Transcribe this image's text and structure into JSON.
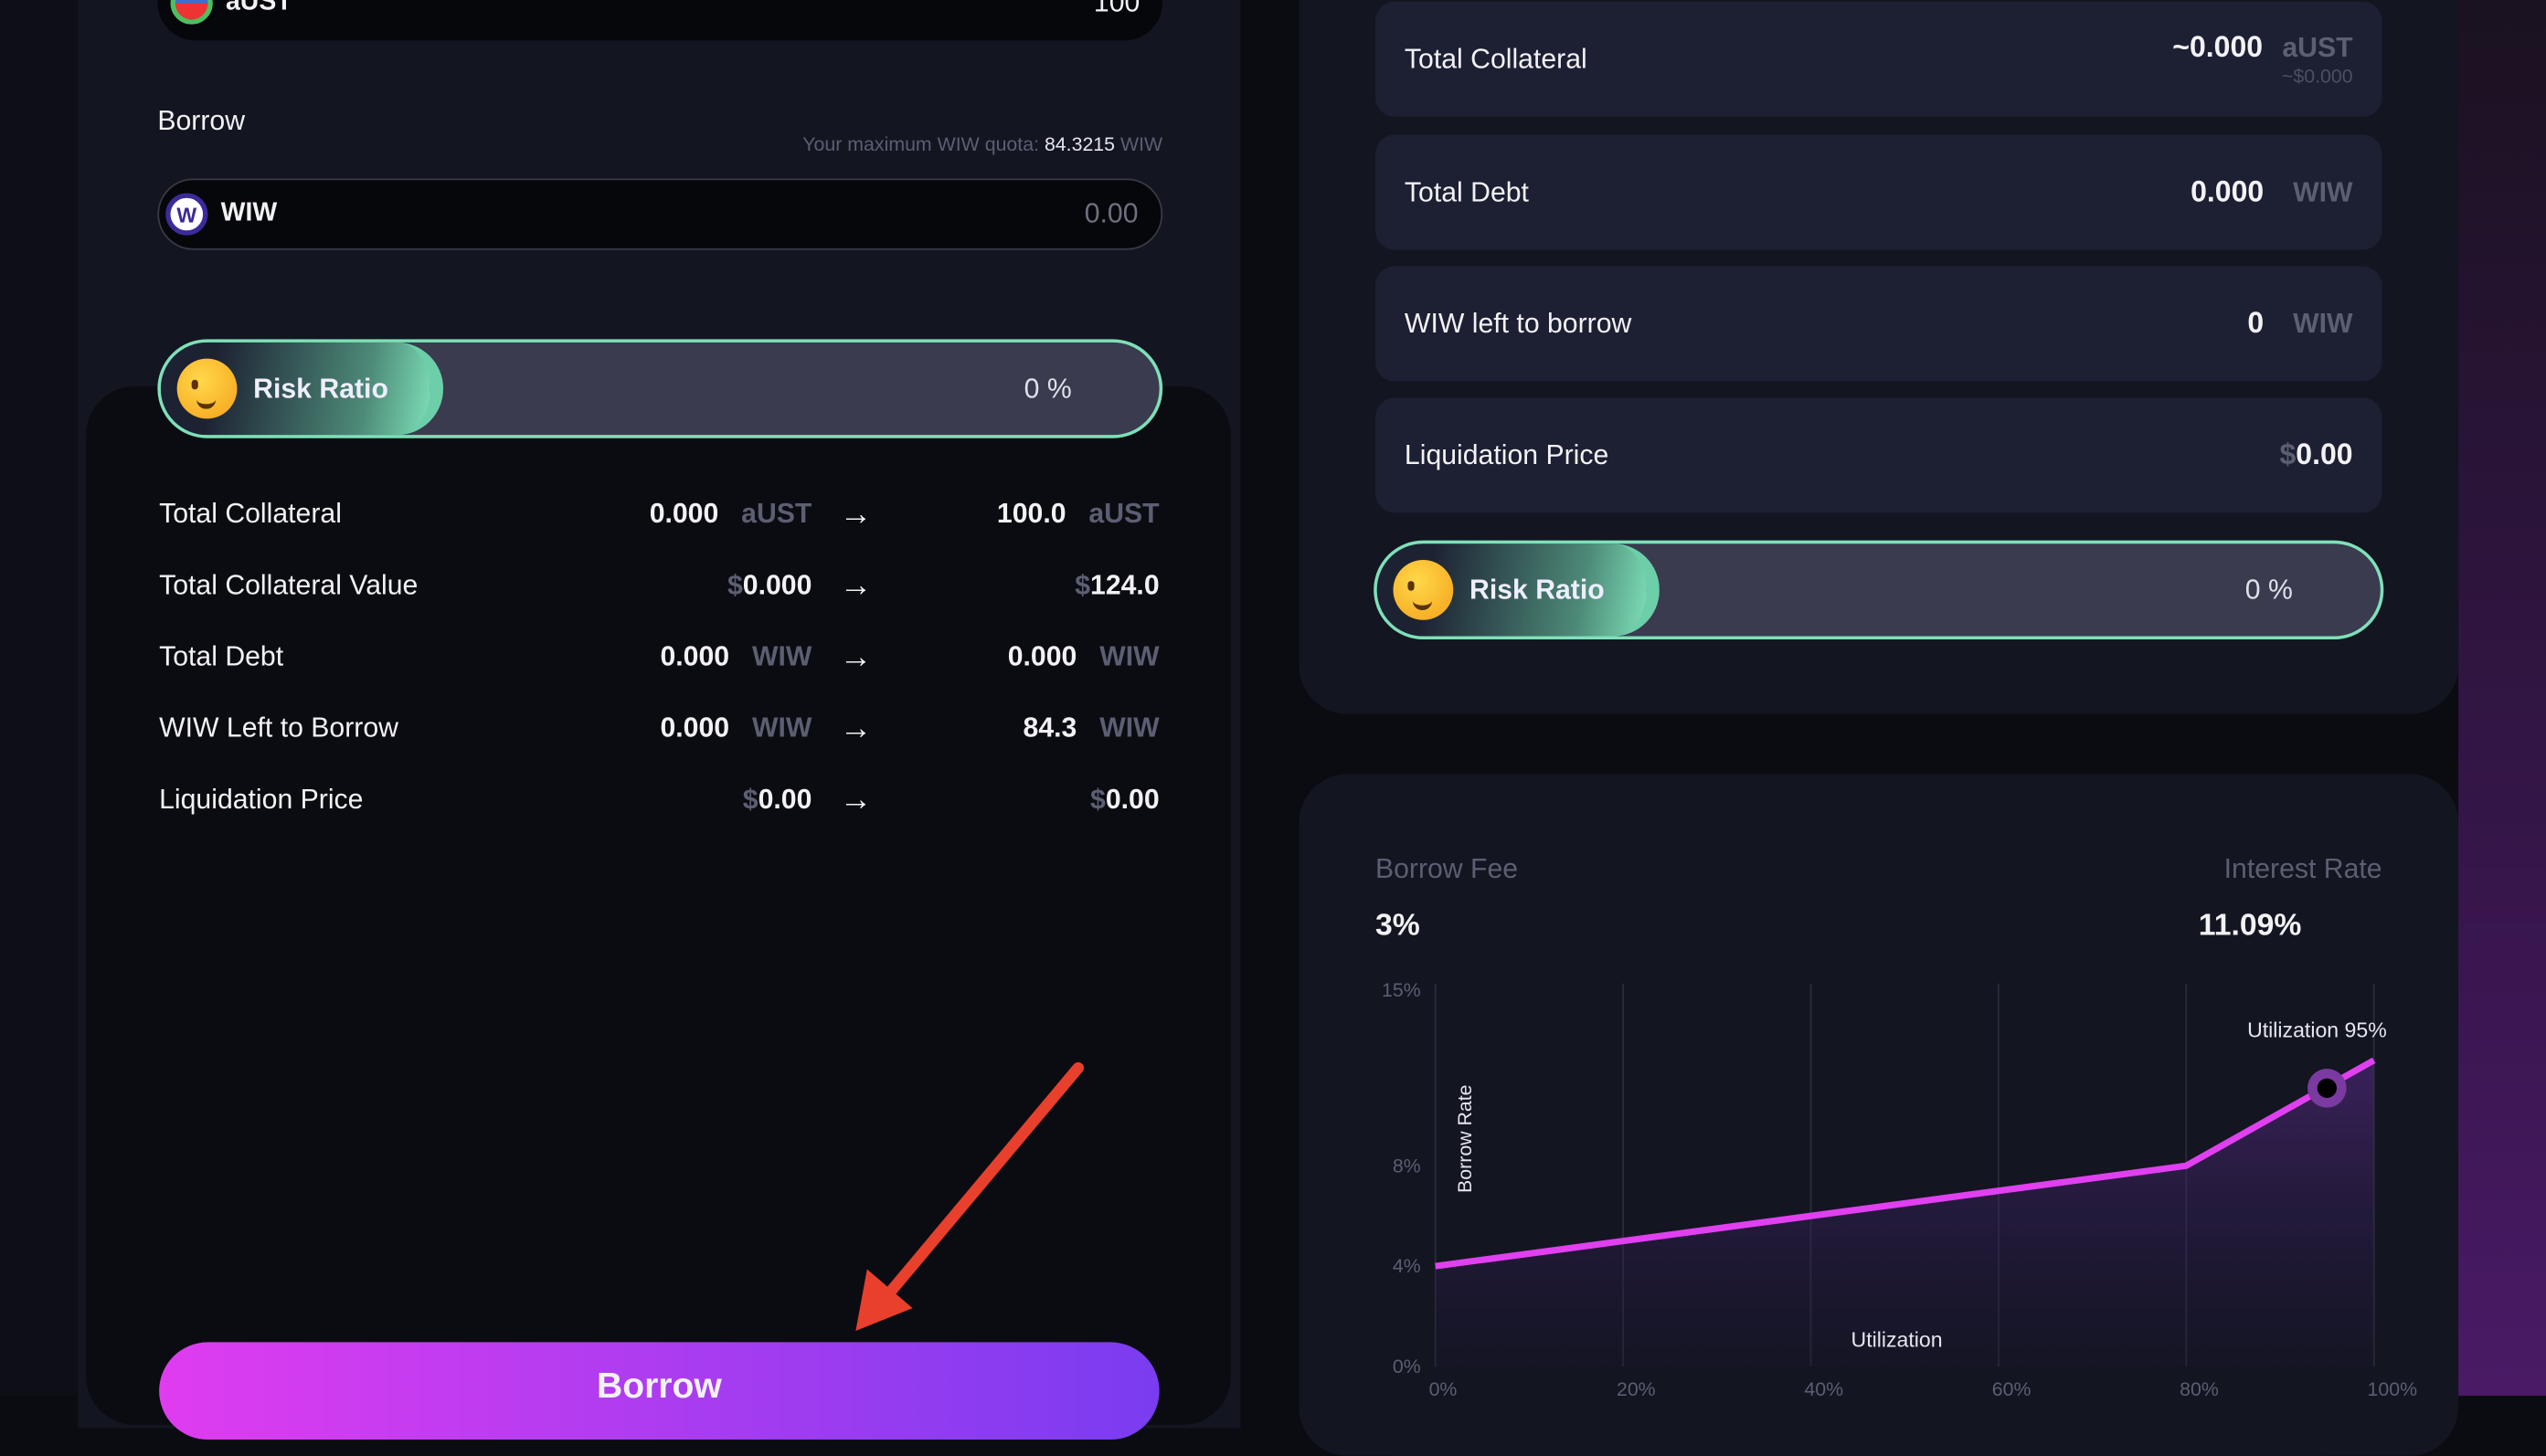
{
  "collateral_input": {
    "token": "aUST",
    "value": "100"
  },
  "borrow": {
    "label": "Borrow",
    "quota_label": "Your maximum WIW quota:",
    "quota_value": "84.3215",
    "quota_unit": "WIW",
    "token": "WIW",
    "placeholder": "0.00"
  },
  "risk": {
    "label": "Risk Ratio",
    "value": "0 %",
    "fraction": 0
  },
  "summary": [
    {
      "label": "Total Collateral",
      "from": "0.000",
      "from_unit": "aUST",
      "to": "100.0",
      "to_unit": "aUST"
    },
    {
      "label": "Total Collateral Value",
      "from_prefix": "$",
      "from": "0.000",
      "to_prefix": "$",
      "to": "124.0"
    },
    {
      "label": "Total Debt",
      "from": "0.000",
      "from_unit": "WIW",
      "to": "0.000",
      "to_unit": "WIW"
    },
    {
      "label": "WIW Left to Borrow",
      "from": "0.000",
      "from_unit": "WIW",
      "to": "84.3",
      "to_unit": "WIW"
    },
    {
      "label": "Liquidation Price",
      "from_prefix": "$",
      "from": "0.00",
      "to_prefix": "$",
      "to": "0.00"
    }
  ],
  "borrow_button": "Borrow",
  "position": {
    "total_collateral": {
      "label": "Total Collateral",
      "value": "~0.000",
      "unit": "aUST",
      "sub": "~$0.000"
    },
    "total_debt": {
      "label": "Total Debt",
      "value": "0.000",
      "unit": "WIW"
    },
    "left": {
      "label": "WIW left to borrow",
      "value": "0",
      "unit": "WIW"
    },
    "liq": {
      "label": "Liquidation Price",
      "prefix": "$",
      "value": "0.00"
    },
    "risk": {
      "label": "Risk Ratio",
      "value": "0 %",
      "fraction": 0
    }
  },
  "rates": {
    "fee_label": "Borrow Fee",
    "fee": "3%",
    "interest_label": "Interest Rate",
    "interest": "11.09%"
  },
  "colors": {
    "accent": "#e040f0",
    "risk_border": "#7ee0b8",
    "button_start": "#e03cf0",
    "button_end": "#7a3cf0",
    "annotation_arrow": "#e8402c"
  },
  "chart_data": {
    "type": "area",
    "xlabel": "Utilization",
    "ylabel": "Borrow Rate",
    "x_ticks": [
      "0%",
      "20%",
      "40%",
      "60%",
      "80%",
      "100%"
    ],
    "y_ticks": [
      "0%",
      "4%",
      "8%",
      "15%"
    ],
    "xlim": [
      0,
      100
    ],
    "ylim": [
      0,
      15
    ],
    "x": [
      0,
      20,
      40,
      60,
      80,
      100
    ],
    "y": [
      4,
      5,
      6,
      7,
      8,
      12.2
    ],
    "marker": {
      "x": 95,
      "y": 11.09,
      "label": "Utilization 95%"
    },
    "grid": "vertical"
  }
}
